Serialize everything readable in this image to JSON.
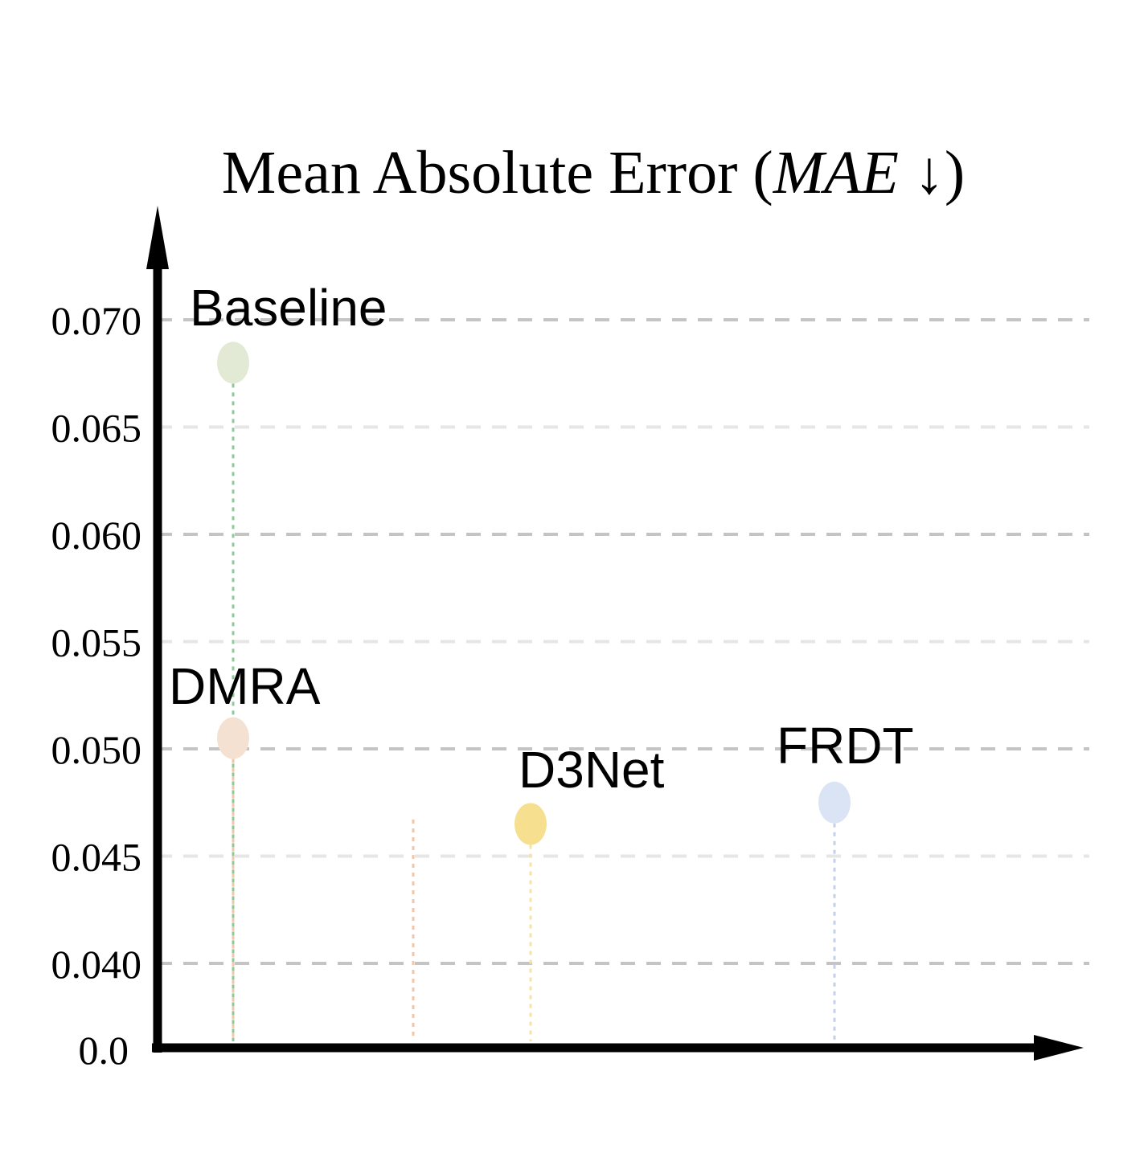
{
  "chart_data": {
    "type": "scatter",
    "title": "Mean Absolute Error (",
    "title_metric": "MAE",
    "title_arrow": " ↓)",
    "xlabel": "",
    "ylabel": "",
    "ylim": [
      0.0,
      0.072
    ],
    "y_ticks": [
      0.04,
      0.045,
      0.05,
      0.055,
      0.06,
      0.065,
      0.07
    ],
    "y_tick_labels": [
      "0.040",
      "0.045",
      "0.050",
      "0.055",
      "0.060",
      "0.065",
      "0.070"
    ],
    "y_origin_label": "0.0",
    "grid": true,
    "points": [
      {
        "label": "Baseline",
        "value": 0.068,
        "color": "#e2ead6",
        "stem_color": "#8fc99a"
      },
      {
        "label": "DMRA",
        "value": 0.0505,
        "color": "#f4e1d2",
        "stem_color": "#f2c6a8"
      },
      {
        "label": "D3Net",
        "value": 0.0465,
        "color": "#f6df8f",
        "stem_color": "#f6e3a6"
      },
      {
        "label": "FRDT",
        "value": 0.0475,
        "color": "#dbe4f4",
        "stem_color": "#c4d0ea"
      }
    ]
  }
}
